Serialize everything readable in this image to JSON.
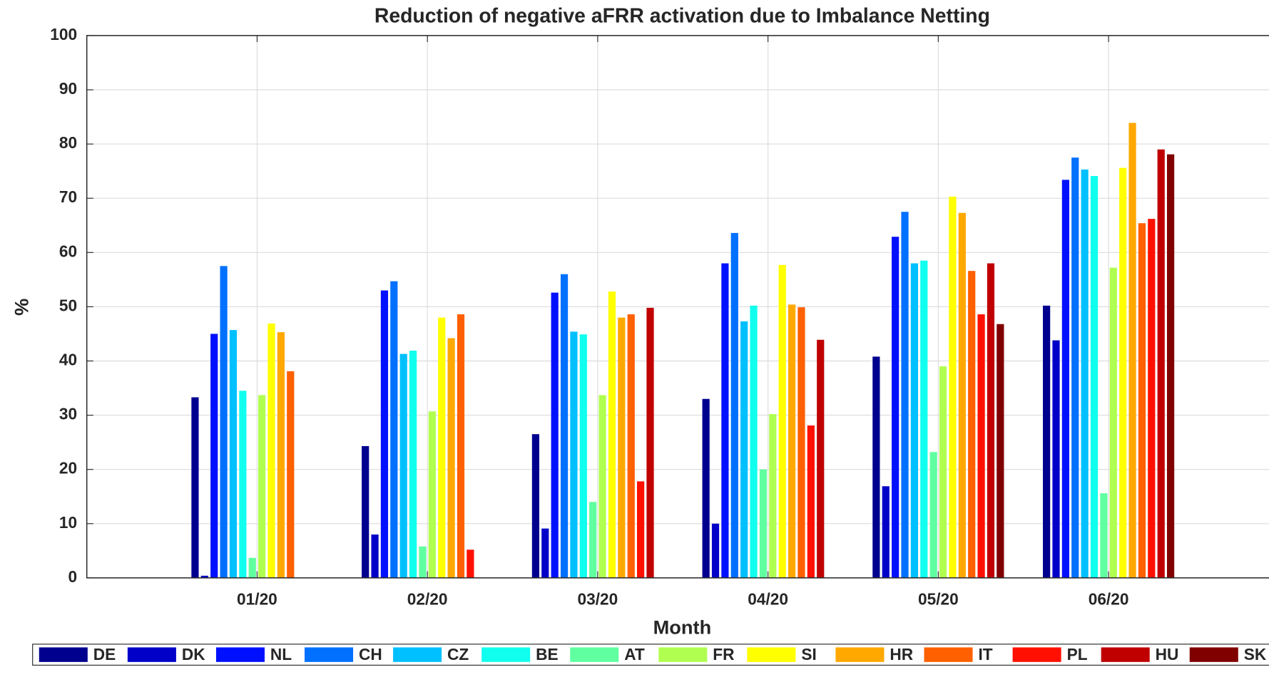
{
  "chart_data": {
    "type": "bar",
    "title": "Reduction of negative aFRR activation due to Imbalance Netting",
    "x_label": "Month",
    "y_label": "%",
    "categories": [
      "01/20",
      "02/20",
      "03/20",
      "04/20",
      "05/20",
      "06/20"
    ],
    "ylim": [
      0,
      100
    ],
    "yticks": [
      0,
      10,
      20,
      30,
      40,
      50,
      60,
      70,
      80,
      90,
      100
    ],
    "grid": true,
    "legend": "bottom",
    "series": [
      {
        "name": "DE",
        "color": "#00008f",
        "values": [
          33.3,
          24.3,
          26.5,
          33,
          40.8,
          50.2
        ]
      },
      {
        "name": "DK",
        "color": "#0000c8",
        "values": [
          0.4,
          8,
          9.1,
          10,
          16.9,
          43.8
        ]
      },
      {
        "name": "NL",
        "color": "#0010ff",
        "values": [
          45,
          53,
          52.6,
          58,
          62.9,
          73.4
        ]
      },
      {
        "name": "CH",
        "color": "#0070ff",
        "values": [
          57.5,
          54.7,
          56,
          63.6,
          67.5,
          77.5
        ]
      },
      {
        "name": "CZ",
        "color": "#00c0ff",
        "values": [
          45.7,
          41.3,
          45.4,
          47.3,
          58,
          75.3
        ]
      },
      {
        "name": "BE",
        "color": "#10ffef",
        "values": [
          34.5,
          41.9,
          44.9,
          50.2,
          58.5,
          74.1
        ]
      },
      {
        "name": "AT",
        "color": "#60ffa0",
        "values": [
          3.7,
          5.8,
          14,
          20,
          23.2,
          15.6
        ]
      },
      {
        "name": "FR",
        "color": "#b0ff50",
        "values": [
          33.7,
          30.7,
          33.7,
          30.2,
          39,
          57.2
        ]
      },
      {
        "name": "SI",
        "color": "#ffff00",
        "values": [
          46.9,
          48,
          52.8,
          57.7,
          70.3,
          75.6
        ]
      },
      {
        "name": "HR",
        "color": "#ffa800",
        "values": [
          45.3,
          44.2,
          48,
          50.4,
          67.3,
          83.9
        ]
      },
      {
        "name": "IT",
        "color": "#ff6000",
        "values": [
          38.1,
          48.6,
          48.6,
          49.9,
          56.6,
          65.4
        ]
      },
      {
        "name": "PL",
        "color": "#ff1000",
        "values": [
          null,
          5.2,
          17.8,
          28.1,
          48.6,
          66.2
        ]
      },
      {
        "name": "HU",
        "color": "#c00000",
        "values": [
          null,
          null,
          49.8,
          43.9,
          58,
          79
        ]
      },
      {
        "name": "SK",
        "color": "#800000",
        "values": [
          null,
          null,
          null,
          null,
          46.8,
          78.1
        ]
      }
    ]
  }
}
